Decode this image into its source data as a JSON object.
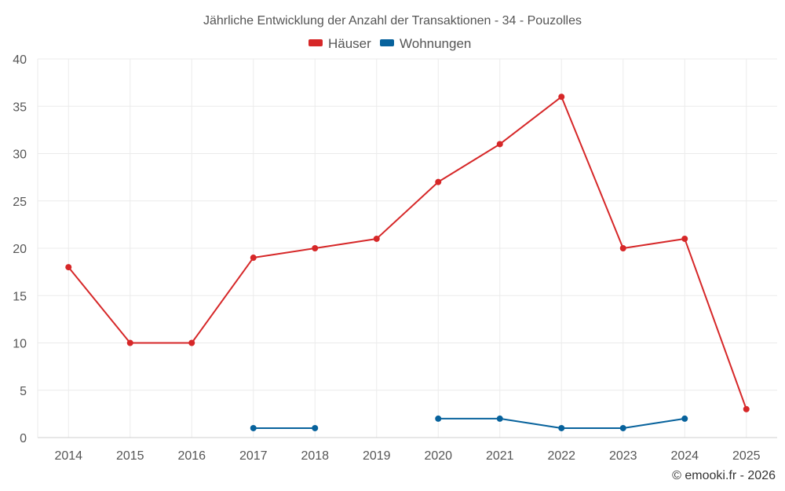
{
  "chart_data": {
    "type": "line",
    "title": "Jährliche Entwicklung der Anzahl der Transaktionen - 34 - Pouzolles",
    "categories": [
      "2014",
      "2015",
      "2016",
      "2017",
      "2018",
      "2019",
      "2020",
      "2021",
      "2022",
      "2023",
      "2024",
      "2025"
    ],
    "ylim": [
      0,
      40
    ],
    "yticks": [
      0,
      5,
      10,
      15,
      20,
      25,
      30,
      35,
      40
    ],
    "grid": true,
    "legend_position": "top-center",
    "series": [
      {
        "name": "Häuser",
        "color": "#d62728",
        "values": [
          18,
          10,
          10,
          19,
          20,
          21,
          27,
          31,
          36,
          20,
          21,
          3
        ]
      },
      {
        "name": "Wohnungen",
        "color": "#07629c",
        "values": [
          null,
          null,
          null,
          1,
          1,
          null,
          2,
          2,
          1,
          1,
          2,
          null
        ]
      }
    ]
  },
  "credit": "© emooki.fr - 2026"
}
